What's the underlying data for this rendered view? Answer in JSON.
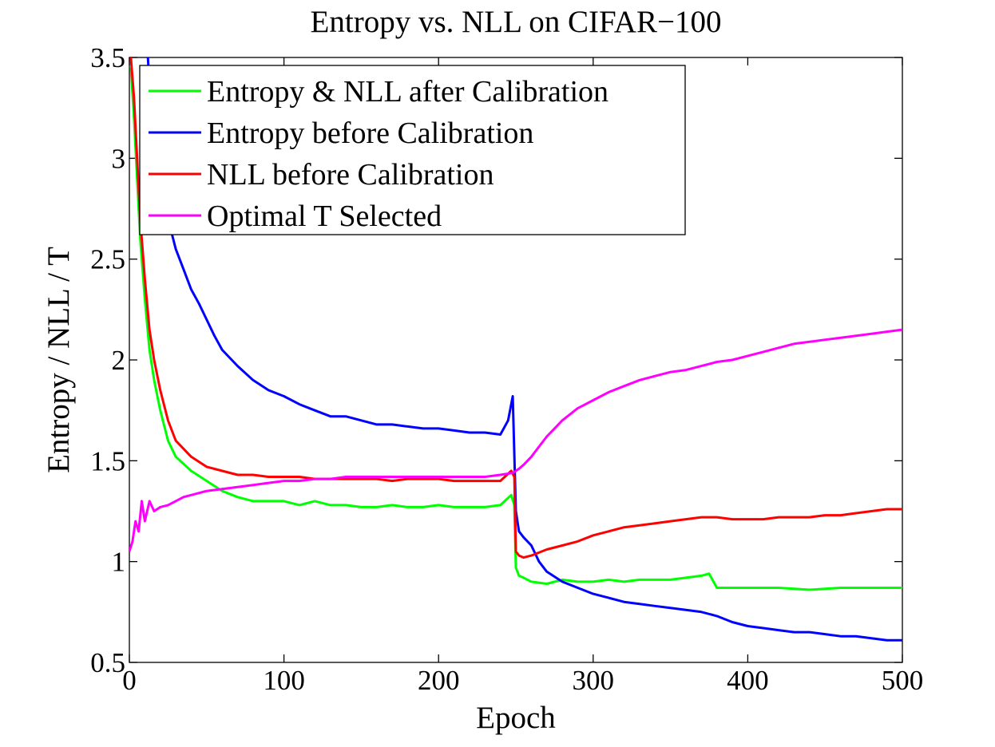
{
  "chart_data": {
    "type": "line",
    "title": "Entropy vs. NLL on CIFAR−100",
    "xlabel": "Epoch",
    "ylabel": "Entropy / NLL / T",
    "xlim": [
      0,
      500
    ],
    "ylim": [
      0.5,
      3.5
    ],
    "xticks": [
      0,
      100,
      200,
      300,
      400,
      500
    ],
    "xtick_labels": [
      "0",
      "100",
      "200",
      "300",
      "400",
      "500"
    ],
    "yticks": [
      0.5,
      1,
      1.5,
      2,
      2.5,
      3,
      3.5
    ],
    "ytick_labels": [
      "0.5",
      "1",
      "1.5",
      "2",
      "2.5",
      "3",
      "3.5"
    ],
    "grid": false,
    "legend_position": "top-left",
    "series": [
      {
        "name": "Entropy & NLL after Calibration",
        "color": "#00ff00",
        "x": [
          1,
          3,
          5,
          7,
          10,
          13,
          16,
          20,
          25,
          30,
          40,
          50,
          60,
          70,
          80,
          90,
          100,
          110,
          120,
          130,
          140,
          150,
          160,
          170,
          180,
          190,
          200,
          210,
          220,
          230,
          240,
          247,
          249,
          250,
          252,
          255,
          260,
          270,
          280,
          290,
          300,
          310,
          320,
          330,
          340,
          350,
          360,
          370,
          375,
          380,
          390,
          400,
          420,
          440,
          460,
          480,
          500
        ],
        "y": [
          3.45,
          3.2,
          2.9,
          2.6,
          2.3,
          2.05,
          1.9,
          1.75,
          1.6,
          1.52,
          1.45,
          1.4,
          1.35,
          1.32,
          1.3,
          1.3,
          1.3,
          1.28,
          1.3,
          1.28,
          1.28,
          1.27,
          1.27,
          1.28,
          1.27,
          1.27,
          1.28,
          1.27,
          1.27,
          1.27,
          1.28,
          1.33,
          1.28,
          0.97,
          0.93,
          0.92,
          0.9,
          0.89,
          0.91,
          0.9,
          0.9,
          0.91,
          0.9,
          0.91,
          0.91,
          0.91,
          0.92,
          0.93,
          0.94,
          0.87,
          0.87,
          0.87,
          0.87,
          0.86,
          0.87,
          0.87,
          0.87
        ]
      },
      {
        "name": "Entropy before Calibration",
        "color": "#0000ff",
        "x": [
          12,
          15,
          20,
          25,
          30,
          35,
          40,
          45,
          50,
          55,
          60,
          70,
          80,
          90,
          100,
          110,
          120,
          130,
          140,
          150,
          160,
          170,
          180,
          190,
          200,
          210,
          220,
          230,
          240,
          245,
          248,
          250,
          252,
          255,
          260,
          265,
          270,
          280,
          290,
          300,
          310,
          320,
          330,
          340,
          350,
          360,
          370,
          380,
          390,
          400,
          410,
          420,
          430,
          440,
          450,
          460,
          470,
          480,
          490,
          500
        ],
        "y": [
          3.5,
          3.1,
          2.85,
          2.7,
          2.55,
          2.45,
          2.35,
          2.28,
          2.2,
          2.12,
          2.05,
          1.97,
          1.9,
          1.85,
          1.82,
          1.78,
          1.75,
          1.72,
          1.72,
          1.7,
          1.68,
          1.68,
          1.67,
          1.66,
          1.66,
          1.65,
          1.64,
          1.64,
          1.63,
          1.7,
          1.82,
          1.25,
          1.15,
          1.12,
          1.08,
          1.0,
          0.95,
          0.9,
          0.87,
          0.84,
          0.82,
          0.8,
          0.79,
          0.78,
          0.77,
          0.76,
          0.75,
          0.73,
          0.7,
          0.68,
          0.67,
          0.66,
          0.65,
          0.65,
          0.64,
          0.63,
          0.63,
          0.62,
          0.61,
          0.61
        ]
      },
      {
        "name": "NLL before Calibration",
        "color": "#ff0000",
        "x": [
          1,
          3,
          5,
          7,
          10,
          13,
          16,
          20,
          25,
          30,
          40,
          50,
          60,
          70,
          80,
          90,
          100,
          110,
          120,
          130,
          140,
          150,
          160,
          170,
          180,
          190,
          200,
          210,
          220,
          230,
          240,
          247,
          249,
          250,
          252,
          255,
          260,
          270,
          280,
          290,
          300,
          310,
          320,
          330,
          340,
          350,
          360,
          370,
          380,
          390,
          400,
          410,
          420,
          430,
          440,
          450,
          460,
          470,
          480,
          490,
          500
        ],
        "y": [
          3.5,
          3.3,
          3.0,
          2.7,
          2.4,
          2.15,
          2.0,
          1.85,
          1.7,
          1.6,
          1.52,
          1.47,
          1.45,
          1.43,
          1.43,
          1.42,
          1.42,
          1.42,
          1.41,
          1.41,
          1.41,
          1.41,
          1.41,
          1.4,
          1.41,
          1.41,
          1.41,
          1.4,
          1.4,
          1.4,
          1.4,
          1.45,
          1.42,
          1.05,
          1.03,
          1.02,
          1.03,
          1.06,
          1.08,
          1.1,
          1.13,
          1.15,
          1.17,
          1.18,
          1.19,
          1.2,
          1.21,
          1.22,
          1.22,
          1.21,
          1.21,
          1.21,
          1.22,
          1.22,
          1.22,
          1.23,
          1.23,
          1.24,
          1.25,
          1.26,
          1.26
        ]
      },
      {
        "name": "Optimal T Selected",
        "color": "#ff00ff",
        "x": [
          0,
          2,
          4,
          6,
          8,
          10,
          13,
          16,
          20,
          25,
          30,
          35,
          40,
          50,
          60,
          70,
          80,
          90,
          100,
          110,
          120,
          130,
          140,
          150,
          160,
          170,
          180,
          190,
          200,
          210,
          220,
          230,
          240,
          248,
          250,
          252,
          255,
          260,
          265,
          270,
          275,
          280,
          285,
          290,
          295,
          300,
          310,
          320,
          330,
          340,
          350,
          360,
          370,
          380,
          390,
          400,
          410,
          420,
          430,
          440,
          450,
          460,
          470,
          480,
          490,
          500
        ],
        "y": [
          1.05,
          1.1,
          1.2,
          1.15,
          1.3,
          1.2,
          1.3,
          1.25,
          1.27,
          1.28,
          1.3,
          1.32,
          1.33,
          1.35,
          1.36,
          1.37,
          1.38,
          1.39,
          1.4,
          1.4,
          1.41,
          1.41,
          1.42,
          1.42,
          1.42,
          1.42,
          1.42,
          1.42,
          1.42,
          1.42,
          1.42,
          1.42,
          1.43,
          1.44,
          1.45,
          1.46,
          1.48,
          1.52,
          1.57,
          1.62,
          1.66,
          1.7,
          1.73,
          1.76,
          1.78,
          1.8,
          1.84,
          1.87,
          1.9,
          1.92,
          1.94,
          1.95,
          1.97,
          1.99,
          2.0,
          2.02,
          2.04,
          2.06,
          2.08,
          2.09,
          2.1,
          2.11,
          2.12,
          2.13,
          2.14,
          2.15
        ]
      }
    ]
  }
}
